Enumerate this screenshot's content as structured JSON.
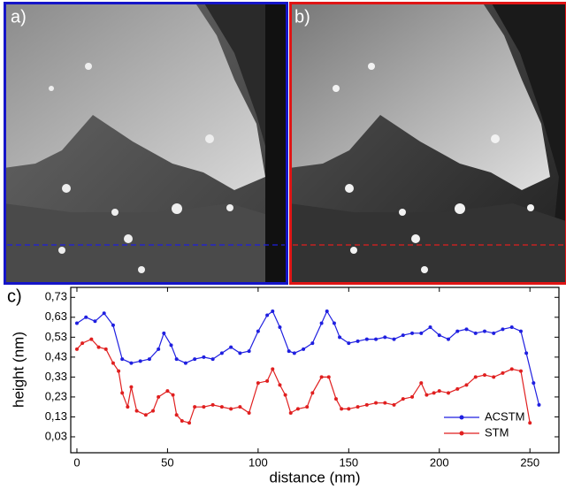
{
  "panels": {
    "a": "a)",
    "b": "b)"
  },
  "chart_data": {
    "type": "line",
    "label": "c)",
    "x_label": "distance (nm)",
    "y_label": "height (nm)",
    "xlim": [
      -3.4,
      266
    ],
    "ylim": [
      -0.05,
      0.78
    ],
    "xticks": [
      0,
      50,
      100,
      150,
      200,
      250
    ],
    "yticks": [
      {
        "value": 0.03,
        "label": "0,03"
      },
      {
        "value": 0.13,
        "label": "0,13"
      },
      {
        "value": 0.23,
        "label": "0,23"
      },
      {
        "value": 0.33,
        "label": "0,33"
      },
      {
        "value": 0.43,
        "label": "0,43"
      },
      {
        "value": 0.53,
        "label": "0,53"
      },
      {
        "value": 0.63,
        "label": "0,63"
      },
      {
        "value": 0.73,
        "label": "0,73"
      }
    ],
    "legend": "lower right",
    "series": [
      {
        "name": "ACSTM",
        "color": "#1f1fe0",
        "x": [
          0,
          5,
          10,
          15,
          20,
          25,
          30,
          35,
          40,
          45,
          48,
          52,
          55,
          60,
          65,
          70,
          75,
          80,
          85,
          90,
          95,
          100,
          105,
          108,
          112,
          117,
          120,
          125,
          130,
          135,
          138,
          142,
          145,
          150,
          155,
          160,
          165,
          170,
          175,
          180,
          185,
          190,
          195,
          200,
          205,
          210,
          215,
          220,
          225,
          230,
          235,
          240,
          245,
          248,
          252,
          255
        ],
        "values": [
          0.6,
          0.63,
          0.61,
          0.65,
          0.59,
          0.42,
          0.4,
          0.41,
          0.42,
          0.47,
          0.55,
          0.49,
          0.42,
          0.4,
          0.42,
          0.43,
          0.42,
          0.45,
          0.48,
          0.45,
          0.46,
          0.56,
          0.64,
          0.66,
          0.58,
          0.46,
          0.45,
          0.47,
          0.5,
          0.6,
          0.66,
          0.6,
          0.53,
          0.5,
          0.51,
          0.52,
          0.52,
          0.53,
          0.52,
          0.54,
          0.55,
          0.55,
          0.58,
          0.54,
          0.52,
          0.56,
          0.57,
          0.55,
          0.56,
          0.55,
          0.57,
          0.58,
          0.56,
          0.45,
          0.3,
          0.19
        ]
      },
      {
        "name": "STM",
        "color": "#e01f1f",
        "x": [
          0,
          3,
          8,
          12,
          16,
          20,
          23,
          25,
          28,
          30,
          33,
          38,
          42,
          45,
          50,
          53,
          55,
          58,
          62,
          65,
          70,
          75,
          80,
          85,
          90,
          95,
          100,
          105,
          108,
          112,
          115,
          118,
          122,
          127,
          130,
          135,
          139,
          143,
          146,
          150,
          155,
          160,
          165,
          170,
          175,
          180,
          185,
          190,
          193,
          197,
          200,
          205,
          210,
          215,
          220,
          225,
          230,
          235,
          240,
          245,
          250
        ],
        "values": [
          0.47,
          0.5,
          0.52,
          0.48,
          0.47,
          0.4,
          0.36,
          0.25,
          0.18,
          0.28,
          0.16,
          0.14,
          0.16,
          0.23,
          0.26,
          0.24,
          0.14,
          0.11,
          0.1,
          0.18,
          0.18,
          0.19,
          0.18,
          0.17,
          0.18,
          0.15,
          0.3,
          0.31,
          0.37,
          0.29,
          0.24,
          0.15,
          0.17,
          0.18,
          0.25,
          0.33,
          0.33,
          0.22,
          0.17,
          0.17,
          0.18,
          0.19,
          0.2,
          0.2,
          0.19,
          0.22,
          0.23,
          0.3,
          0.24,
          0.25,
          0.26,
          0.25,
          0.27,
          0.29,
          0.33,
          0.34,
          0.33,
          0.35,
          0.37,
          0.36,
          0.1
        ]
      }
    ]
  }
}
